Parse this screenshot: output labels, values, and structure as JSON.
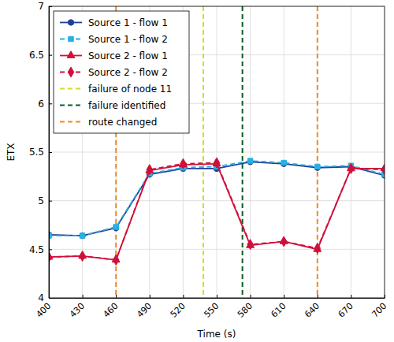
{
  "chart_data": {
    "type": "line",
    "x_label": "Time (s)",
    "y_label": "ETX",
    "x": [
      400,
      430,
      460,
      490,
      520,
      550,
      580,
      610,
      640,
      670,
      700
    ],
    "xlim": [
      400,
      700
    ],
    "xticks": [
      400,
      430,
      460,
      490,
      520,
      550,
      580,
      610,
      640,
      670,
      700
    ],
    "ylim": [
      4,
      7
    ],
    "yticks": [
      4,
      4.5,
      5,
      5.5,
      6,
      6.5,
      7
    ],
    "grid": true,
    "legend": "upper left",
    "series": [
      {
        "name": "Source 1 - flow 1",
        "color": "#1f3f99",
        "marker": "circle",
        "line_style": "solid",
        "values": [
          4.65,
          4.64,
          4.72,
          5.27,
          5.33,
          5.33,
          5.4,
          5.38,
          5.34,
          5.35,
          5.26
        ]
      },
      {
        "name": "Source 1 - flow 2",
        "color": "#29b0e0",
        "marker": "square",
        "line_style": "dashed",
        "values": [
          4.64,
          4.64,
          4.73,
          5.28,
          5.34,
          5.35,
          5.41,
          5.39,
          5.35,
          5.36,
          5.27
        ]
      },
      {
        "name": "Source 2 - flow 1",
        "color": "#d0103a",
        "marker": "triangle",
        "line_style": "solid",
        "values": [
          4.42,
          4.43,
          4.39,
          5.31,
          5.37,
          5.38,
          4.54,
          4.58,
          4.5,
          5.33,
          5.33
        ]
      },
      {
        "name": "Source 2 - flow 2",
        "color": "#d0103a",
        "marker": "diamond",
        "line_style": "dashed",
        "values": [
          4.42,
          4.43,
          4.39,
          5.32,
          5.38,
          5.39,
          4.55,
          4.58,
          4.51,
          5.33,
          5.32
        ]
      }
    ],
    "vlines": [
      {
        "name": "failure of node 11",
        "color": "#d8d830",
        "line_style": "dashed",
        "x": [
          538
        ]
      },
      {
        "name": "failure identified",
        "color": "#0b5e22",
        "line_style": "dashed",
        "x": [
          573
        ]
      },
      {
        "name": "route changed",
        "color": "#f08a24",
        "line_style": "dashed",
        "x": [
          460,
          640
        ]
      }
    ]
  }
}
